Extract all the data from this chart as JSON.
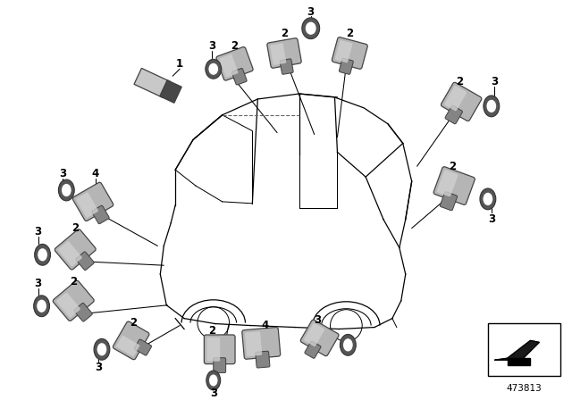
{
  "bg_color": "#ffffff",
  "diagram_number": "473813",
  "figsize": [
    6.4,
    4.48
  ],
  "dpi": 100,
  "car_lw": 0.9,
  "sensor_fc": "#b8b8b8",
  "sensor_fc2": "#d0d0d0",
  "sensor_dark": "#808080",
  "ring_fc": "#909090",
  "ring_hole": "#ffffff"
}
